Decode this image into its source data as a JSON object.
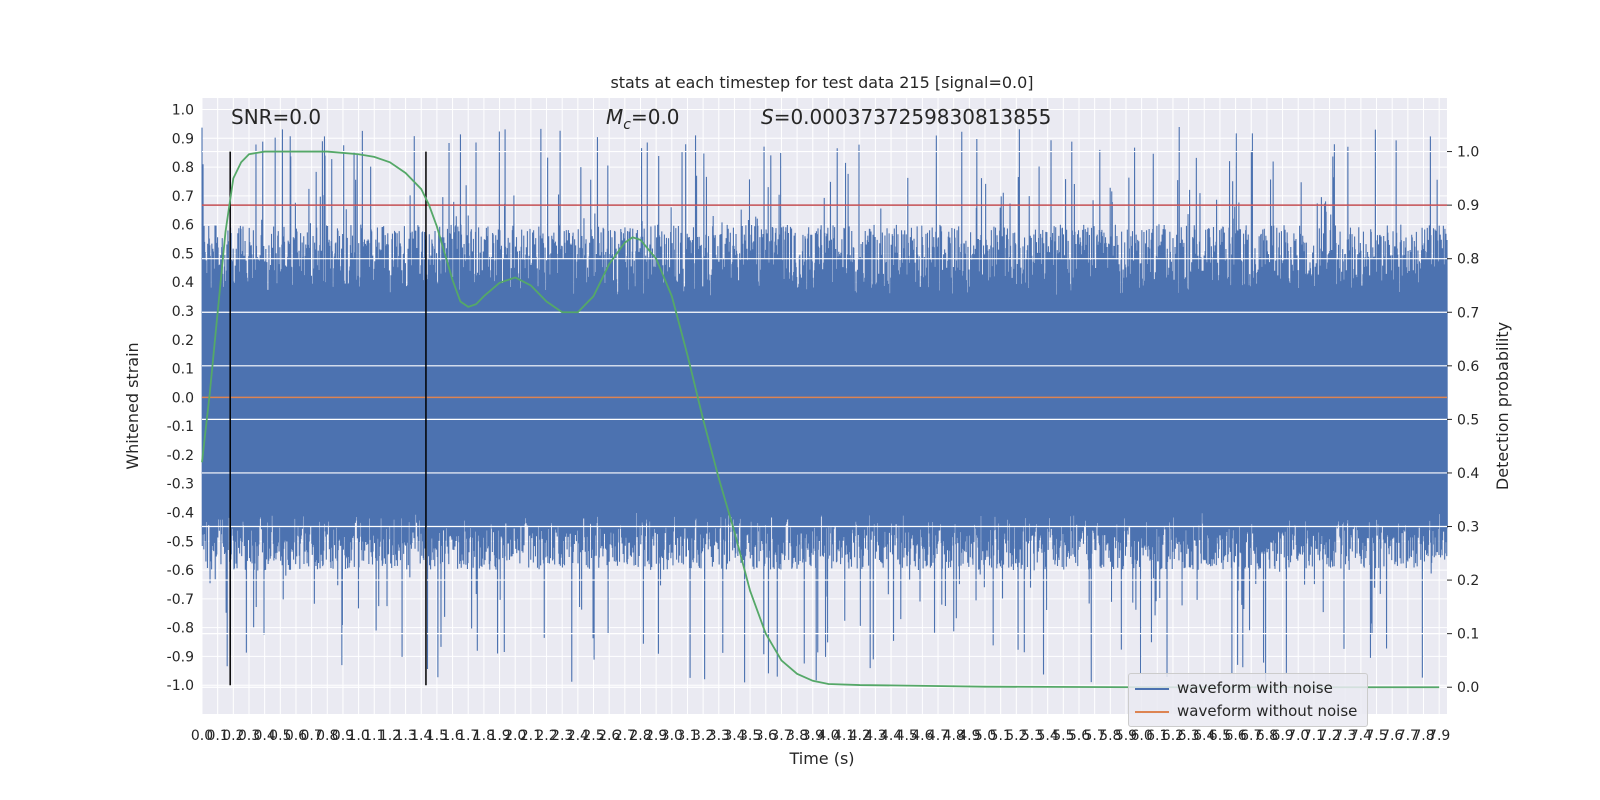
{
  "chart_data": {
    "type": "line",
    "title": "stats at each timestep for test data 215 [signal=0.0]",
    "xlabel": "Time (s)",
    "ylabel_left": "Whitened strain",
    "ylabel_right": "Detection probability",
    "xlim": [
      0.0,
      7.95
    ],
    "ylim_left": [
      -1.1,
      1.04
    ],
    "ylim_right": [
      -0.05,
      1.1
    ],
    "x_ticks": [
      "0.0",
      "0.1",
      "0.2",
      "0.3",
      "0.4",
      "0.5",
      "0.6",
      "0.7",
      "0.8",
      "0.9",
      "1.0",
      "1.1",
      "1.2",
      "1.3",
      "1.4",
      "1.5",
      "1.6",
      "1.7",
      "1.8",
      "1.9",
      "2.0",
      "2.1",
      "2.2",
      "2.3",
      "2.4",
      "2.5",
      "2.6",
      "2.7",
      "2.8",
      "2.9",
      "3.0",
      "3.1",
      "3.2",
      "3.3",
      "3.4",
      "3.5",
      "3.6",
      "3.7",
      "3.8",
      "3.9",
      "4.0",
      "4.1",
      "4.2",
      "4.3",
      "4.4",
      "4.5",
      "4.6",
      "4.7",
      "4.8",
      "4.9",
      "5.0",
      "5.1",
      "5.2",
      "5.3",
      "5.4",
      "5.5",
      "5.6",
      "5.7",
      "5.8",
      "5.9",
      "6.0",
      "6.1",
      "6.2",
      "6.3",
      "6.4",
      "6.5",
      "6.6",
      "6.7",
      "6.8",
      "6.9",
      "7.0",
      "7.1",
      "7.2",
      "7.3",
      "7.4",
      "7.5",
      "7.6",
      "7.7",
      "7.8",
      "7.9"
    ],
    "y_ticks_left": [
      "1.0",
      "0.9",
      "0.8",
      "0.7",
      "0.6",
      "0.5",
      "0.4",
      "0.3",
      "0.2",
      "0.1",
      "0.0",
      "-0.1",
      "-0.2",
      "-0.3",
      "-0.4",
      "-0.5",
      "-0.6",
      "-0.7",
      "-0.8",
      "-0.9",
      "-1.0"
    ],
    "y_ticks_right": [
      "1.0",
      "0.9",
      "0.8",
      "0.7",
      "0.6",
      "0.5",
      "0.4",
      "0.3",
      "0.2",
      "0.1",
      "0.0"
    ],
    "annotations": {
      "snr": "SNR=0.0",
      "mc_symbol": "M",
      "mc_sub": "c",
      "mc_value": "=0.0",
      "s_symbol": "S",
      "s_value": "=0.0003737259830813855"
    },
    "series": [
      {
        "name": "waveform with noise",
        "color": "#4c72b0",
        "axis": "left",
        "envelope_approx": {
          "typical_positive": [
            0.35,
            0.6
          ],
          "typical_negative": [
            -0.4,
            -0.6
          ],
          "peak_max": 0.94,
          "peak_min": -1.0
        }
      },
      {
        "name": "waveform without noise",
        "color": "#dd8452",
        "axis": "left",
        "x": [
          0.0,
          7.95
        ],
        "y": [
          0.0,
          0.0
        ]
      },
      {
        "name": "Detection probability",
        "color": "#55a868",
        "axis": "right",
        "x": [
          0.0,
          0.05,
          0.1,
          0.15,
          0.2,
          0.25,
          0.3,
          0.4,
          0.5,
          0.6,
          0.8,
          1.0,
          1.1,
          1.2,
          1.3,
          1.4,
          1.45,
          1.5,
          1.55,
          1.6,
          1.65,
          1.7,
          1.75,
          1.8,
          1.9,
          2.0,
          2.1,
          2.2,
          2.3,
          2.4,
          2.5,
          2.6,
          2.7,
          2.75,
          2.8,
          2.9,
          3.0,
          3.1,
          3.2,
          3.3,
          3.4,
          3.5,
          3.6,
          3.7,
          3.8,
          3.9,
          4.0,
          4.2,
          4.5,
          5.0,
          6.0,
          7.0,
          7.9
        ],
        "y": [
          0.42,
          0.55,
          0.7,
          0.85,
          0.95,
          0.98,
          0.995,
          1.0,
          1.0,
          1.0,
          1.0,
          0.995,
          0.99,
          0.98,
          0.96,
          0.93,
          0.9,
          0.86,
          0.81,
          0.76,
          0.72,
          0.71,
          0.715,
          0.73,
          0.755,
          0.765,
          0.75,
          0.72,
          0.7,
          0.7,
          0.73,
          0.79,
          0.83,
          0.84,
          0.835,
          0.8,
          0.73,
          0.62,
          0.5,
          0.39,
          0.29,
          0.18,
          0.1,
          0.05,
          0.025,
          0.012,
          0.006,
          0.004,
          0.003,
          0.001,
          0.0,
          0.0,
          0.0
        ]
      }
    ],
    "hlines": [
      {
        "axis": "right",
        "y": 0.9,
        "color": "#c44e52"
      }
    ],
    "vlines": [
      {
        "x": 0.18,
        "color": "#000000"
      },
      {
        "x": 1.43,
        "color": "#000000"
      }
    ],
    "grid": true,
    "legend_placement": "lower-right"
  }
}
